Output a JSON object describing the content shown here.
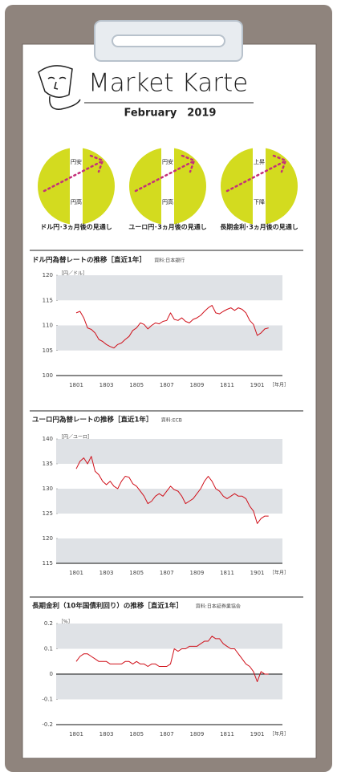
{
  "header": {
    "title": "Market Karte",
    "subtitle": "February　2019"
  },
  "outlooks": [
    {
      "top": "円安",
      "bottom": "円高",
      "caption": "ドル円･3ヵ月後の見通し"
    },
    {
      "top": "円安",
      "bottom": "円高",
      "caption": "ユーロ円･3ヵ月後の見通し"
    },
    {
      "top": "上昇",
      "bottom": "下降",
      "caption": "長期金利･3ヵ月後の見通し"
    }
  ],
  "chart_data": [
    {
      "type": "line",
      "title": "ドル円為替レートの推移［直近1年］",
      "source": "資料:日本銀行",
      "y_label": "［円／ドル］",
      "x_label": "［年月］",
      "color": "#d0101a",
      "bands": true,
      "zero_line": false,
      "categories": [
        "1801",
        null,
        null,
        null,
        null,
        null,
        null,
        null,
        "1803",
        null,
        null,
        null,
        null,
        null,
        null,
        null,
        "1805",
        null,
        null,
        null,
        null,
        null,
        null,
        null,
        "1807",
        null,
        null,
        null,
        null,
        null,
        null,
        null,
        "1809",
        null,
        null,
        null,
        null,
        null,
        null,
        null,
        "1811",
        null,
        null,
        null,
        null,
        null,
        null,
        null,
        "1901",
        null,
        null,
        null
      ],
      "values": [
        112.5,
        112.8,
        111.5,
        109.5,
        109.2,
        108.5,
        107.2,
        106.8,
        106.2,
        105.8,
        105.5,
        106.2,
        106.5,
        107.2,
        107.8,
        109.0,
        109.5,
        110.5,
        110.2,
        109.3,
        110.0,
        110.5,
        110.3,
        110.8,
        111.0,
        112.5,
        111.2,
        111.0,
        111.5,
        110.8,
        110.5,
        111.2,
        111.5,
        112.0,
        112.8,
        113.5,
        114.0,
        112.5,
        112.3,
        112.8,
        113.2,
        113.5,
        113.0,
        113.5,
        113.2,
        112.5,
        111.0,
        110.2,
        108.0,
        108.5,
        109.3,
        109.5
      ],
      "ylim": [
        100,
        120
      ],
      "yticks": [
        100,
        105,
        110,
        115,
        120
      ]
    },
    {
      "type": "line",
      "title": "ユーロ円為替レートの推移［直近1年］",
      "source": "資料:ECB",
      "y_label": "［円／ユーロ］",
      "x_label": "［年月］",
      "color": "#d0101a",
      "bands": true,
      "zero_line": false,
      "categories": [
        "1801",
        null,
        null,
        null,
        null,
        null,
        null,
        null,
        "1803",
        null,
        null,
        null,
        null,
        null,
        null,
        null,
        "1805",
        null,
        null,
        null,
        null,
        null,
        null,
        null,
        "1807",
        null,
        null,
        null,
        null,
        null,
        null,
        null,
        "1809",
        null,
        null,
        null,
        null,
        null,
        null,
        null,
        "1811",
        null,
        null,
        null,
        null,
        null,
        null,
        null,
        "1901",
        null,
        null,
        null
      ],
      "values": [
        134.0,
        135.5,
        136.2,
        135.0,
        136.5,
        133.5,
        132.8,
        131.5,
        130.8,
        131.5,
        130.5,
        130.0,
        131.5,
        132.5,
        132.3,
        131.0,
        130.5,
        129.5,
        128.5,
        127.0,
        127.5,
        128.5,
        129.0,
        128.5,
        129.5,
        130.5,
        129.8,
        129.5,
        128.5,
        127.0,
        127.5,
        128.0,
        129.0,
        130.0,
        131.5,
        132.5,
        131.5,
        130.0,
        129.5,
        128.5,
        128.0,
        128.5,
        129.0,
        128.5,
        128.5,
        128.0,
        126.5,
        125.5,
        123.0,
        124.0,
        124.5,
        124.5
      ],
      "ylim": [
        115,
        140
      ],
      "yticks": [
        115,
        120,
        125,
        130,
        135,
        140
      ]
    },
    {
      "type": "line",
      "title": "長期金利（10年国債利回り）の推移［直近1年］",
      "source": "資料:日本証券業協会",
      "y_label": "［%］",
      "x_label": "［年月］",
      "color": "#d0101a",
      "bands": true,
      "zero_line": true,
      "categories": [
        "1801",
        null,
        null,
        null,
        null,
        null,
        null,
        null,
        "1803",
        null,
        null,
        null,
        null,
        null,
        null,
        null,
        "1805",
        null,
        null,
        null,
        null,
        null,
        null,
        null,
        "1807",
        null,
        null,
        null,
        null,
        null,
        null,
        null,
        "1809",
        null,
        null,
        null,
        null,
        null,
        null,
        null,
        "1811",
        null,
        null,
        null,
        null,
        null,
        null,
        null,
        "1901",
        null,
        null,
        null
      ],
      "values": [
        0.05,
        0.07,
        0.08,
        0.08,
        0.07,
        0.06,
        0.05,
        0.05,
        0.05,
        0.04,
        0.04,
        0.04,
        0.04,
        0.05,
        0.05,
        0.04,
        0.05,
        0.04,
        0.04,
        0.03,
        0.04,
        0.04,
        0.03,
        0.03,
        0.03,
        0.04,
        0.1,
        0.09,
        0.1,
        0.1,
        0.11,
        0.11,
        0.11,
        0.12,
        0.13,
        0.13,
        0.15,
        0.14,
        0.14,
        0.12,
        0.11,
        0.1,
        0.1,
        0.08,
        0.06,
        0.04,
        0.03,
        0.01,
        -0.03,
        0.01,
        0.0,
        0.0
      ],
      "ylim": [
        -0.2,
        0.2
      ],
      "yticks": [
        -0.2,
        -0.1,
        0,
        0.1,
        0.2
      ]
    }
  ]
}
